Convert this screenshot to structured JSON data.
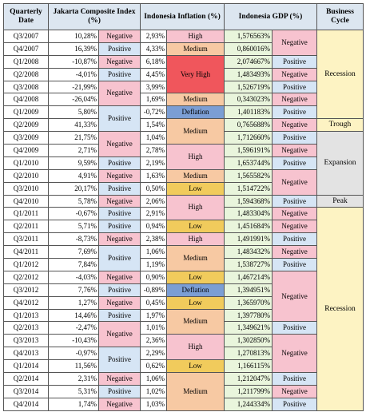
{
  "headers": {
    "date": "Quarterly Date",
    "jci": "Jakarta Composite Index (%)",
    "inflation": "Indonesia Inflation (%)",
    "gdp": "Indonesia GDP (%)",
    "cycle": "Business Cycle"
  },
  "colors": {
    "negative": "#f7c3cf",
    "positive": "#d6e5f5",
    "high": "#f7c3cf",
    "very_high": "#f0565c",
    "medium": "#f7c9a3",
    "low": "#f1cb5c",
    "deflation": "#7b9ed4",
    "cycle_recession": "#fdf3c3",
    "cycle_expansion": "#e3e3e3",
    "cycle_trough": "#fdf3c3",
    "cycle_peak": "#e3e3e3",
    "gdp_value": "#e9f5dc",
    "header": "#dce6f0"
  },
  "rows": [
    {
      "date": "Q3/2007",
      "jci": "10,28%",
      "infl": "2,93%",
      "gdp": "1,576563%"
    },
    {
      "date": "Q4/2007",
      "jci": "16,39%",
      "infl": "4,33%",
      "gdp": "0,860016%"
    },
    {
      "date": "Q1/2008",
      "jci": "-10,87%",
      "infl": "6,18%",
      "gdp": "2,074667%"
    },
    {
      "date": "Q2/2008",
      "jci": "-4,01%",
      "infl": "4,45%",
      "gdp": "1,483493%"
    },
    {
      "date": "Q3/2008",
      "jci": "-21,99%",
      "infl": "3,99%",
      "gdp": "1,526719%"
    },
    {
      "date": "Q4/2008",
      "jci": "-26,04%",
      "infl": "1,69%",
      "gdp": "0,343023%"
    },
    {
      "date": "Q1/2009",
      "jci": "5,80%",
      "infl": "-0,72%",
      "gdp": "1,401183%"
    },
    {
      "date": "Q2/2009",
      "jci": "41,33%",
      "infl": "1,54%",
      "gdp": "0,765688%"
    },
    {
      "date": "Q3/2009",
      "jci": "21,75%",
      "infl": "1,04%",
      "gdp": "1,712660%"
    },
    {
      "date": "Q4/2009",
      "jci": "2,71%",
      "infl": "2,78%",
      "gdp": "1,596191%"
    },
    {
      "date": "Q1/2010",
      "jci": "9,59%",
      "infl": "2,19%",
      "gdp": "1,653744%"
    },
    {
      "date": "Q2/2010",
      "jci": "4,91%",
      "infl": "1,63%",
      "gdp": "1,565582%"
    },
    {
      "date": "Q3/2010",
      "jci": "20,17%",
      "infl": "0,50%",
      "gdp": "1,514722%"
    },
    {
      "date": "Q4/2010",
      "jci": "5,78%",
      "infl": "2,06%",
      "gdp": "1,594368%"
    },
    {
      "date": "Q1/2011",
      "jci": "-0,67%",
      "infl": "2,91%",
      "gdp": "1,483304%"
    },
    {
      "date": "Q2/2011",
      "jci": "5,71%",
      "infl": "0,94%",
      "gdp": "1,451684%"
    },
    {
      "date": "Q3/2011",
      "jci": "-8,73%",
      "infl": "2,38%",
      "gdp": "1,491991%"
    },
    {
      "date": "Q4/2011",
      "jci": "7,69%",
      "infl": "1,06%",
      "gdp": "1,483432%"
    },
    {
      "date": "Q1/2012",
      "jci": "7,84%",
      "infl": "1,19%",
      "gdp": "1,538727%"
    },
    {
      "date": "Q2/2012",
      "jci": "-4,03%",
      "infl": "0,90%",
      "gdp": "1,467214%"
    },
    {
      "date": "Q3/2012",
      "jci": "7,76%",
      "infl": "-0,89%",
      "gdp": "1,394951%"
    },
    {
      "date": "Q4/2012",
      "jci": "1,27%",
      "infl": "0,45%",
      "gdp": "1,365970%"
    },
    {
      "date": "Q1/2013",
      "jci": "14,46%",
      "infl": "1,97%",
      "gdp": "1,397780%"
    },
    {
      "date": "Q2/2013",
      "jci": "-2,47%",
      "infl": "1,01%",
      "gdp": "1,349621%"
    },
    {
      "date": "Q3/2013",
      "jci": "-10,43%",
      "infl": "2,36%",
      "gdp": "1,302850%"
    },
    {
      "date": "Q4/2013",
      "jci": "-0,97%",
      "infl": "2,29%",
      "gdp": "1,270813%"
    },
    {
      "date": "Q1/2014",
      "jci": "11,56%",
      "infl": "0,62%",
      "gdp": "1,166115%"
    },
    {
      "date": "Q2/2014",
      "jci": "2,31%",
      "infl": "1,06%",
      "gdp": "1,212047%"
    },
    {
      "date": "Q3/2014",
      "jci": "5,31%",
      "infl": "1,02%",
      "gdp": "1,211799%"
    },
    {
      "date": "Q4/2014",
      "jci": "1,74%",
      "infl": "1,03%",
      "gdp": "1,244334%"
    }
  ],
  "jci_groups": [
    {
      "start": 0,
      "span": 1,
      "label": "Negative",
      "tone": "negative"
    },
    {
      "start": 1,
      "span": 1,
      "label": "Positive",
      "tone": "positive"
    },
    {
      "start": 2,
      "span": 1,
      "label": "Negative",
      "tone": "negative"
    },
    {
      "start": 3,
      "span": 1,
      "label": "Positive",
      "tone": "positive"
    },
    {
      "start": 4,
      "span": 2,
      "label": "Negative",
      "tone": "negative"
    },
    {
      "start": 6,
      "span": 2,
      "label": "Positive",
      "tone": "positive"
    },
    {
      "start": 8,
      "span": 2,
      "label": "Negative",
      "tone": "negative"
    },
    {
      "start": 10,
      "span": 1,
      "label": "Positive",
      "tone": "positive"
    },
    {
      "start": 11,
      "span": 1,
      "label": "Negative",
      "tone": "negative"
    },
    {
      "start": 12,
      "span": 1,
      "label": "Positive",
      "tone": "positive"
    },
    {
      "start": 13,
      "span": 1,
      "label": "Negative",
      "tone": "negative"
    },
    {
      "start": 14,
      "span": 1,
      "label": "Positive",
      "tone": "positive"
    },
    {
      "start": 15,
      "span": 1,
      "label": "Positive",
      "tone": "positive"
    },
    {
      "start": 16,
      "span": 1,
      "label": "Negative",
      "tone": "negative"
    },
    {
      "start": 17,
      "span": 2,
      "label": "Positive",
      "tone": "positive"
    },
    {
      "start": 19,
      "span": 1,
      "label": "Negative",
      "tone": "negative"
    },
    {
      "start": 20,
      "span": 1,
      "label": "Positive",
      "tone": "positive"
    },
    {
      "start": 21,
      "span": 1,
      "label": "Negative",
      "tone": "negative"
    },
    {
      "start": 22,
      "span": 1,
      "label": "Positive",
      "tone": "positive"
    },
    {
      "start": 23,
      "span": 2,
      "label": "Negative",
      "tone": "negative"
    },
    {
      "start": 25,
      "span": 2,
      "label": "Positive",
      "tone": "positive"
    },
    {
      "start": 27,
      "span": 1,
      "label": "Negative",
      "tone": "negative"
    },
    {
      "start": 28,
      "span": 1,
      "label": "Positive",
      "tone": "positive"
    },
    {
      "start": 29,
      "span": 1,
      "label": "Negative",
      "tone": "negative"
    }
  ],
  "infl_groups": [
    {
      "start": 0,
      "span": 1,
      "label": "High",
      "tone": "high"
    },
    {
      "start": 1,
      "span": 1,
      "label": "Medium",
      "tone": "medium"
    },
    {
      "start": 2,
      "span": 3,
      "label": "Very High",
      "tone": "very_high"
    },
    {
      "start": 5,
      "span": 1,
      "label": "Medium",
      "tone": "medium"
    },
    {
      "start": 6,
      "span": 1,
      "label": "Deflation",
      "tone": "deflation"
    },
    {
      "start": 7,
      "span": 2,
      "label": "Medium",
      "tone": "medium"
    },
    {
      "start": 9,
      "span": 2,
      "label": "High",
      "tone": "high"
    },
    {
      "start": 11,
      "span": 1,
      "label": "Medium",
      "tone": "medium"
    },
    {
      "start": 12,
      "span": 1,
      "label": "Low",
      "tone": "low"
    },
    {
      "start": 13,
      "span": 2,
      "label": "High",
      "tone": "high"
    },
    {
      "start": 15,
      "span": 1,
      "label": "Low",
      "tone": "low"
    },
    {
      "start": 16,
      "span": 1,
      "label": "High",
      "tone": "high"
    },
    {
      "start": 17,
      "span": 2,
      "label": "Medium",
      "tone": "medium"
    },
    {
      "start": 19,
      "span": 1,
      "label": "Low",
      "tone": "low"
    },
    {
      "start": 20,
      "span": 1,
      "label": "Deflation",
      "tone": "deflation"
    },
    {
      "start": 21,
      "span": 1,
      "label": "Low",
      "tone": "low"
    },
    {
      "start": 22,
      "span": 2,
      "label": "Medium",
      "tone": "medium"
    },
    {
      "start": 24,
      "span": 2,
      "label": "High",
      "tone": "high"
    },
    {
      "start": 26,
      "span": 1,
      "label": "Low",
      "tone": "low"
    },
    {
      "start": 27,
      "span": 3,
      "label": "Medium",
      "tone": "medium"
    }
  ],
  "gdp_groups": [
    {
      "start": 0,
      "span": 2,
      "label": "Negative",
      "tone": "negative"
    },
    {
      "start": 2,
      "span": 1,
      "label": "Positive",
      "tone": "positive"
    },
    {
      "start": 3,
      "span": 1,
      "label": "Negative",
      "tone": "negative"
    },
    {
      "start": 4,
      "span": 1,
      "label": "Positive",
      "tone": "positive"
    },
    {
      "start": 5,
      "span": 1,
      "label": "Negative",
      "tone": "negative"
    },
    {
      "start": 6,
      "span": 1,
      "label": "Positive",
      "tone": "positive"
    },
    {
      "start": 7,
      "span": 1,
      "label": "Negative",
      "tone": "negative"
    },
    {
      "start": 8,
      "span": 1,
      "label": "Positive",
      "tone": "positive"
    },
    {
      "start": 9,
      "span": 1,
      "label": "Negative",
      "tone": "negative"
    },
    {
      "start": 10,
      "span": 1,
      "label": "Positive",
      "tone": "positive"
    },
    {
      "start": 11,
      "span": 2,
      "label": "Negative",
      "tone": "negative"
    },
    {
      "start": 13,
      "span": 1,
      "label": "Positive",
      "tone": "positive"
    },
    {
      "start": 14,
      "span": 1,
      "label": "Negative",
      "tone": "negative"
    },
    {
      "start": 15,
      "span": 1,
      "label": "Negative",
      "tone": "negative"
    },
    {
      "start": 16,
      "span": 1,
      "label": "Positive",
      "tone": "positive"
    },
    {
      "start": 17,
      "span": 1,
      "label": "Negative",
      "tone": "negative"
    },
    {
      "start": 18,
      "span": 1,
      "label": "Positive",
      "tone": "positive"
    },
    {
      "start": 19,
      "span": 4,
      "label": "Negative",
      "tone": "negative"
    },
    {
      "start": 23,
      "span": 1,
      "label": "Positive",
      "tone": "positive"
    },
    {
      "start": 24,
      "span": 3,
      "label": "Negative",
      "tone": "negative"
    },
    {
      "start": 27,
      "span": 1,
      "label": "Positive",
      "tone": "positive"
    },
    {
      "start": 28,
      "span": 1,
      "label": "Negative",
      "tone": "negative"
    },
    {
      "start": 29,
      "span": 1,
      "label": "Positive",
      "tone": "positive"
    }
  ],
  "cycle_groups": [
    {
      "start": 0,
      "span": 7,
      "label": "Recession",
      "tone": "cycle_recession"
    },
    {
      "start": 7,
      "span": 1,
      "label": "Trough",
      "tone": "cycle_trough"
    },
    {
      "start": 8,
      "span": 5,
      "label": "Expansion",
      "tone": "cycle_expansion"
    },
    {
      "start": 13,
      "span": 1,
      "label": "Peak",
      "tone": "cycle_peak"
    },
    {
      "start": 14,
      "span": 16,
      "label": "Recession",
      "tone": "cycle_recession"
    }
  ],
  "section_breaks": [
    7,
    13,
    14,
    27
  ]
}
